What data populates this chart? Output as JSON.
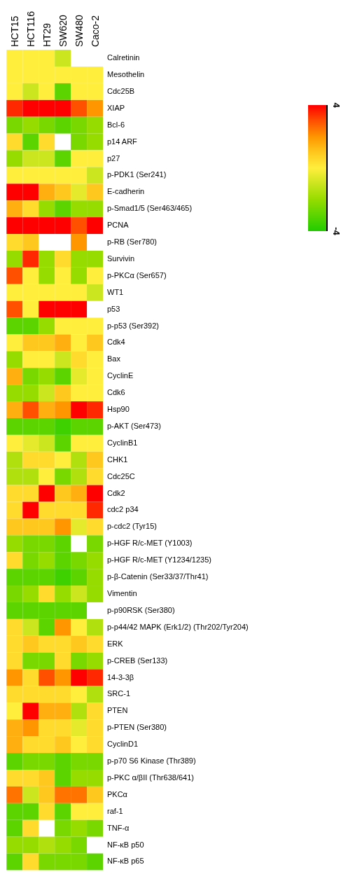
{
  "chart_data": {
    "type": "heatmap",
    "categories": [
      "HCT15",
      "HCT116",
      "HT29",
      "SW620",
      "SW480",
      "Caco-2"
    ],
    "y_categories": [
      "Calretinin",
      "Mesothelin",
      "Cdc25B",
      "XIAP",
      "Bcl-6",
      "p14 ARF",
      "p27",
      "p-PDK1 (Ser241)",
      "E-cadherin",
      "p-Smad1/5 (Ser463/465)",
      "PCNA",
      "p-RB (Ser780)",
      "Survivin",
      "p-PKCα (Ser657)",
      "WT1",
      "p53",
      "p-p53 (Ser392)",
      "Cdk4",
      "Bax",
      "CyclinE",
      "Cdk6",
      "Hsp90",
      "p-AKT (Ser473)",
      "CyclinB1",
      "CHK1",
      "Cdc25C",
      "Cdk2",
      "cdc2 p34",
      "p-cdc2 (Tyr15)",
      "p-HGF R/c-MET (Y1003)",
      "p-HGF R/c-MET (Y1234/1235)",
      "p-β-Catenin (Ser33/37/Thr41)",
      "Vimentin",
      "p-p90RSK (Ser380)",
      "p-p44/42 MAPK (Erk1/2) (Thr202/Tyr204)",
      "ERK",
      "p-CREB (Ser133)",
      "14-3-3β",
      "SRC-1",
      "PTEN",
      "p-PTEN (Ser380)",
      "CyclinD1",
      "p-p70 S6 Kinase (Thr389)",
      "p-PKC α/βII (Thr638/641)",
      "PKCα",
      "raf-1",
      "TNF-α",
      "NF-κB p50",
      "NF-κB p65"
    ],
    "cells": [
      [
        0,
        0,
        0,
        -1,
        null,
        null
      ],
      [
        0,
        0,
        0,
        0,
        0,
        0
      ],
      [
        0,
        -1,
        0,
        -3,
        0,
        0
      ],
      [
        3.5,
        4,
        4,
        4,
        3,
        2
      ],
      [
        -2.5,
        -2,
        -2.5,
        -3,
        -2.5,
        -2
      ],
      [
        0.5,
        -3,
        0.5,
        null,
        -2.5,
        -2
      ],
      [
        -2,
        -1,
        -1,
        -3,
        0,
        0
      ],
      [
        0,
        0,
        0,
        0,
        0,
        -1
      ],
      [
        4,
        4,
        1.5,
        1,
        -0.5,
        1
      ],
      [
        1.5,
        0.5,
        -2,
        -3,
        -2,
        -2
      ],
      [
        4,
        4,
        4,
        4,
        3,
        4
      ],
      [
        0.5,
        1,
        null,
        null,
        2,
        null
      ],
      [
        -2,
        3.5,
        -2,
        0.5,
        -2,
        -2
      ],
      [
        3,
        0,
        -2,
        0,
        -2,
        0
      ],
      [
        0,
        0,
        0,
        0,
        0,
        -1
      ],
      [
        3,
        0,
        4,
        4,
        4,
        null
      ],
      [
        -3,
        -3,
        -2,
        0,
        0,
        0
      ],
      [
        0,
        1,
        1,
        1.5,
        0,
        1
      ],
      [
        -2,
        0,
        0,
        -1,
        0.5,
        0
      ],
      [
        1.5,
        -2.5,
        -2,
        -3,
        -0.5,
        0
      ],
      [
        -2,
        -2,
        -1,
        1,
        0,
        0
      ],
      [
        1.5,
        3,
        1.5,
        2,
        4,
        3.5
      ],
      [
        -3,
        -3,
        -3,
        -3.5,
        -3,
        -3
      ],
      [
        0,
        -0.5,
        -1,
        -3,
        0,
        0
      ],
      [
        -1.5,
        0.5,
        0.5,
        0,
        -1.5,
        1
      ],
      [
        -1.5,
        -1.5,
        0,
        -2.5,
        -1.5,
        0.5
      ],
      [
        0.5,
        0.5,
        4,
        1,
        1.5,
        4
      ],
      [
        0.5,
        4,
        0.5,
        0.5,
        0.5,
        3.5
      ],
      [
        1,
        1,
        1,
        2,
        -0.5,
        0.5
      ],
      [
        -2,
        -2.5,
        -2.5,
        -3,
        null,
        -2.5
      ],
      [
        0.5,
        -2.5,
        -2,
        -3,
        -2.5,
        -2
      ],
      [
        -3,
        -3,
        -3,
        -3.5,
        -3,
        -2
      ],
      [
        -2.5,
        -2,
        0.5,
        -2,
        -1,
        -2
      ],
      [
        -3,
        -3,
        -3,
        -3,
        -3,
        null
      ],
      [
        0.5,
        -1,
        -3,
        2,
        0,
        -1.5
      ],
      [
        0.5,
        1,
        0.5,
        0.5,
        1,
        0.5
      ],
      [
        0.5,
        -2.5,
        -2.5,
        0.5,
        -2.5,
        -2
      ],
      [
        2,
        0.5,
        3,
        2,
        4,
        3.5
      ],
      [
        0.5,
        0.5,
        0.5,
        0.5,
        0,
        -1.5
      ],
      [
        0,
        4,
        1.5,
        1.5,
        -1.5,
        0.5
      ],
      [
        1.5,
        2,
        0.5,
        0.5,
        -0.5,
        0.5
      ],
      [
        1.5,
        0.5,
        0.5,
        1,
        0,
        0.5
      ],
      [
        -3,
        -2.5,
        -2.5,
        -3,
        -2.5,
        -2.5
      ],
      [
        0.5,
        0.5,
        1,
        -3,
        -2,
        -2
      ],
      [
        2.5,
        -1,
        1,
        2.5,
        2.5,
        1
      ],
      [
        -3,
        -3,
        0.5,
        -3,
        0,
        0
      ],
      [
        -3,
        0.5,
        null,
        -2.5,
        -2,
        -2.5
      ],
      [
        -2,
        -2,
        -1.5,
        -2,
        -2.5,
        null
      ],
      [
        -3,
        0.5,
        -2.5,
        -2.5,
        -2.5,
        -3
      ]
    ],
    "clim": [
      -4,
      4
    ],
    "cticks": [
      -4,
      4
    ]
  }
}
